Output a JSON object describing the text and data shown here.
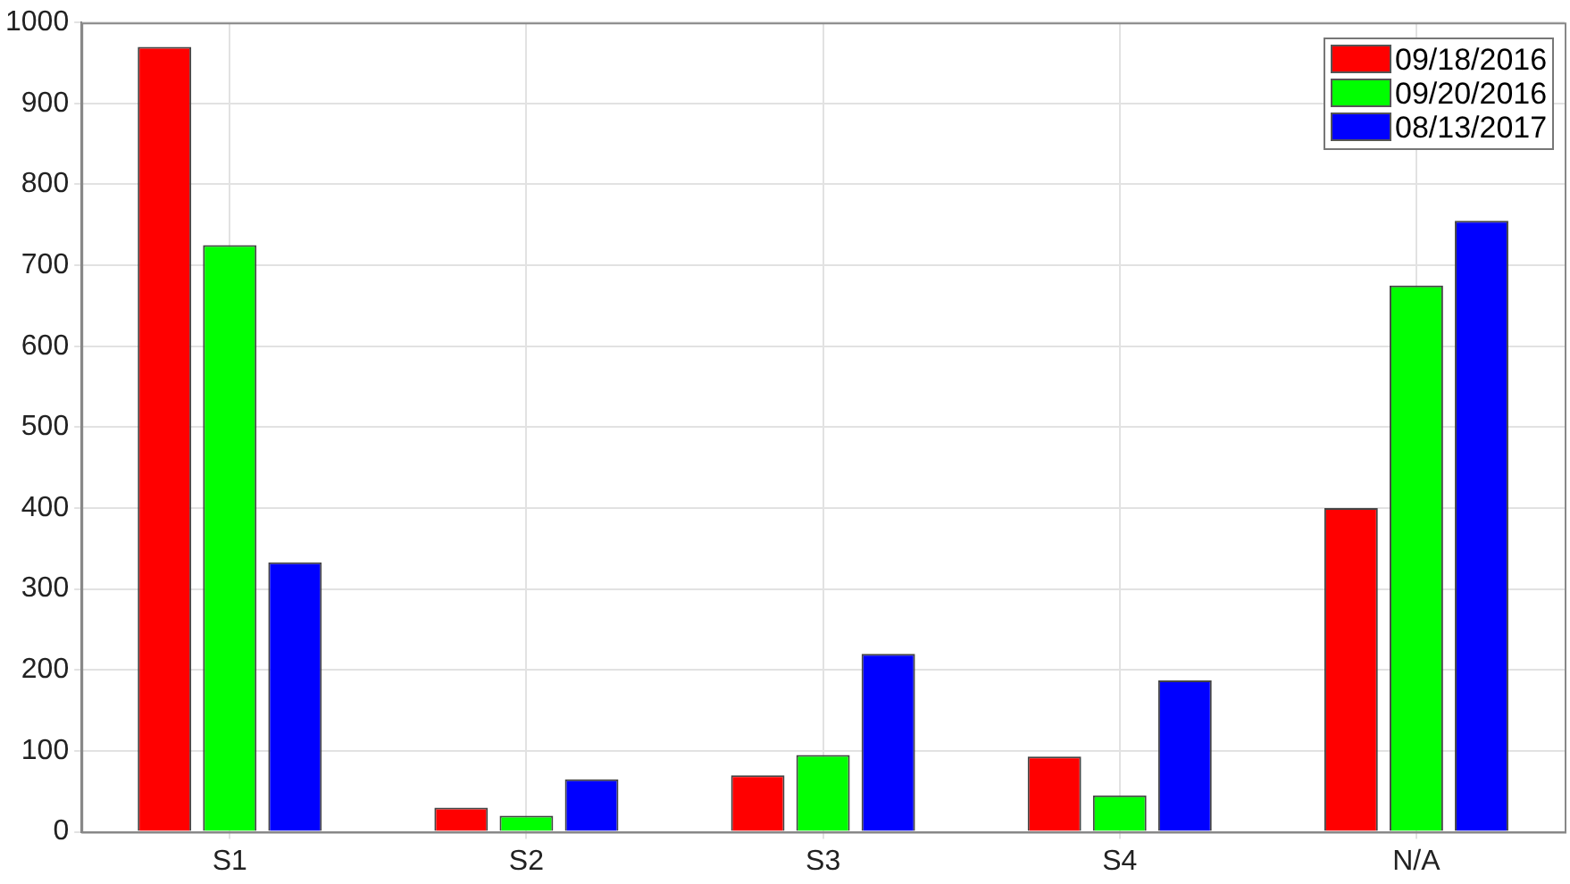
{
  "chart_data": {
    "type": "bar",
    "categories": [
      "S1",
      "S2",
      "S3",
      "S4",
      "N/A"
    ],
    "series": [
      {
        "name": "09/18/2016",
        "color": "#ff0000",
        "values": [
          970,
          30,
          70,
          93,
          400
        ]
      },
      {
        "name": "09/20/2016",
        "color": "#00ff00",
        "values": [
          725,
          20,
          95,
          45,
          675
        ]
      },
      {
        "name": "08/13/2017",
        "color": "#0000ff",
        "values": [
          333,
          65,
          220,
          187,
          755
        ]
      }
    ],
    "ylim": [
      0,
      1000
    ],
    "yticks": [
      0,
      100,
      200,
      300,
      400,
      500,
      600,
      700,
      800,
      900,
      1000
    ],
    "grid": true,
    "legend": "top right"
  }
}
